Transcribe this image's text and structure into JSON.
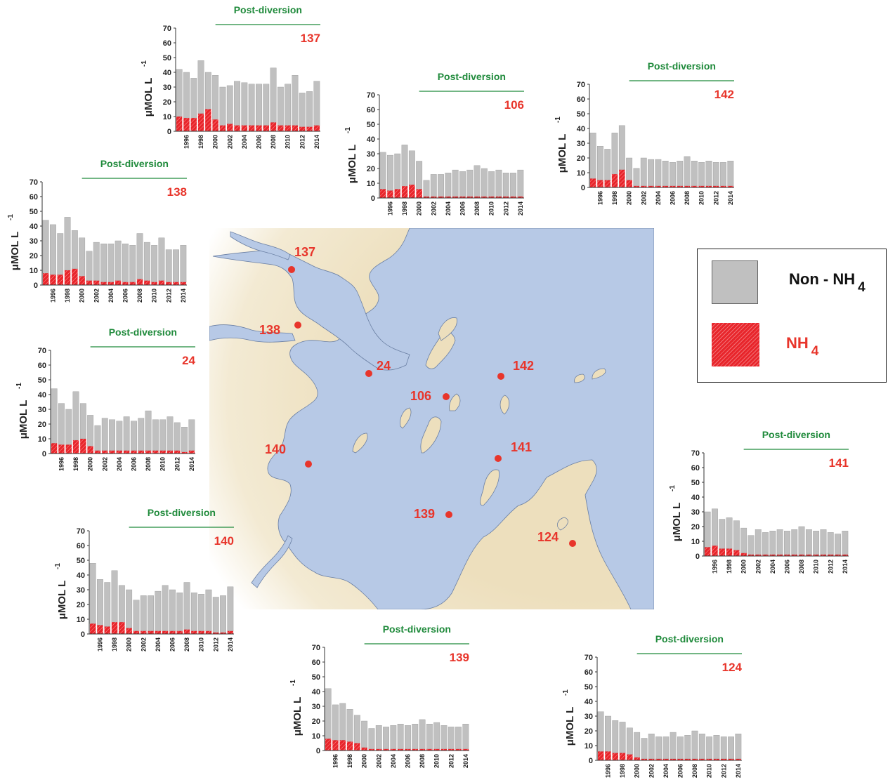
{
  "legend": {
    "gray_label": "Non - NH",
    "gray_sub": "4",
    "red_label": "NH",
    "red_sub": "4"
  },
  "colors": {
    "non_nh4": "#c0c0c0",
    "nh4": "#e8252b",
    "post_line": "#1f8a3b",
    "water": "#b7c9e6",
    "land": "#eddfbd"
  },
  "map": {
    "stations": [
      {
        "id": "137",
        "label": "137"
      },
      {
        "id": "138",
        "label": "138"
      },
      {
        "id": "24",
        "label": "24"
      },
      {
        "id": "106",
        "label": "106"
      },
      {
        "id": "142",
        "label": "142"
      },
      {
        "id": "140",
        "label": "140"
      },
      {
        "id": "141",
        "label": "141"
      },
      {
        "id": "139",
        "label": "139"
      },
      {
        "id": "124",
        "label": "124"
      }
    ]
  },
  "chart_data": [
    {
      "type": "bar",
      "station": "137",
      "post_label": "Post-diversion",
      "ylabel": "μMOL L",
      "ylabel_sup": "-1",
      "ylim": [
        0,
        70
      ],
      "yticks": [
        0,
        10,
        20,
        30,
        40,
        50,
        60,
        70
      ],
      "categories": [
        "1995",
        "1996",
        "1997",
        "1998",
        "1999",
        "2000",
        "2001",
        "2002",
        "2003",
        "2004",
        "2005",
        "2006",
        "2007",
        "2008",
        "2009",
        "2010",
        "2011",
        "2012",
        "2013",
        "2014"
      ],
      "xtick_labels": [
        "1996",
        "1998",
        "2000",
        "2002",
        "2004",
        "2006",
        "2008",
        "2010",
        "2012",
        "2014"
      ],
      "series": [
        {
          "name": "NH4",
          "values": [
            10,
            9,
            9,
            12,
            15,
            8,
            4,
            5,
            4,
            4,
            4,
            4,
            4,
            6,
            4,
            4,
            4,
            3,
            3,
            4
          ]
        },
        {
          "name": "Non-NH4",
          "values": [
            32,
            31,
            27,
            36,
            25,
            30,
            26,
            26,
            30,
            29,
            28,
            28,
            28,
            37,
            26,
            28,
            34,
            23,
            24,
            30
          ]
        }
      ]
    },
    {
      "type": "bar",
      "station": "106",
      "post_label": "Post-diversion",
      "ylabel": "μMOL L",
      "ylabel_sup": "-1",
      "ylim": [
        0,
        70
      ],
      "yticks": [
        0,
        10,
        20,
        30,
        40,
        50,
        60,
        70
      ],
      "categories": [
        "1995",
        "1996",
        "1997",
        "1998",
        "1999",
        "2000",
        "2001",
        "2002",
        "2003",
        "2004",
        "2005",
        "2006",
        "2007",
        "2008",
        "2009",
        "2010",
        "2011",
        "2012",
        "2013",
        "2014"
      ],
      "xtick_labels": [
        "1996",
        "1998",
        "2000",
        "2002",
        "2004",
        "2006",
        "2008",
        "2010",
        "2012",
        "2014"
      ],
      "series": [
        {
          "name": "NH4",
          "values": [
            6,
            5,
            6,
            8,
            9,
            6,
            1,
            1,
            1,
            1,
            1,
            1,
            1,
            1,
            1,
            1,
            1,
            1,
            1,
            1
          ]
        },
        {
          "name": "Non-NH4",
          "values": [
            25,
            24,
            24,
            28,
            23,
            19,
            11,
            15,
            15,
            16,
            18,
            17,
            18,
            21,
            19,
            17,
            18,
            16,
            16,
            18
          ]
        }
      ]
    },
    {
      "type": "bar",
      "station": "142",
      "post_label": "Post-diversion",
      "ylabel": "μMOL L",
      "ylabel_sup": "-1",
      "ylim": [
        0,
        70
      ],
      "yticks": [
        0,
        10,
        20,
        30,
        40,
        50,
        60,
        70
      ],
      "categories": [
        "1995",
        "1996",
        "1997",
        "1998",
        "1999",
        "2000",
        "2001",
        "2002",
        "2003",
        "2004",
        "2005",
        "2006",
        "2007",
        "2008",
        "2009",
        "2010",
        "2011",
        "2012",
        "2013",
        "2014"
      ],
      "xtick_labels": [
        "1996",
        "1998",
        "2000",
        "2002",
        "2004",
        "2006",
        "2008",
        "2010",
        "2012",
        "2014"
      ],
      "series": [
        {
          "name": "NH4",
          "values": [
            6,
            5,
            5,
            9,
            12,
            5,
            1,
            1,
            1,
            1,
            1,
            1,
            1,
            1,
            1,
            1,
            1,
            1,
            1,
            1
          ]
        },
        {
          "name": "Non-NH4",
          "values": [
            31,
            23,
            21,
            28,
            30,
            15,
            12,
            19,
            18,
            18,
            17,
            16,
            17,
            20,
            17,
            16,
            17,
            16,
            16,
            17
          ]
        }
      ]
    },
    {
      "type": "bar",
      "station": "138",
      "post_label": "Post-diversion",
      "ylabel": "μMOL L",
      "ylabel_sup": "-1",
      "ylim": [
        0,
        70
      ],
      "yticks": [
        0,
        10,
        20,
        30,
        40,
        50,
        60,
        70
      ],
      "categories": [
        "1995",
        "1996",
        "1997",
        "1998",
        "1999",
        "2000",
        "2001",
        "2002",
        "2003",
        "2004",
        "2005",
        "2006",
        "2007",
        "2008",
        "2009",
        "2010",
        "2011",
        "2012",
        "2013",
        "2014"
      ],
      "xtick_labels": [
        "1996",
        "1998",
        "2000",
        "2002",
        "2004",
        "2006",
        "2008",
        "2010",
        "2012",
        "2014"
      ],
      "series": [
        {
          "name": "NH4",
          "values": [
            8,
            7,
            7,
            10,
            11,
            6,
            3,
            3,
            2,
            2,
            3,
            2,
            2,
            4,
            3,
            2,
            3,
            2,
            2,
            2
          ]
        },
        {
          "name": "Non-NH4",
          "values": [
            36,
            34,
            28,
            36,
            26,
            26,
            20,
            26,
            26,
            26,
            27,
            26,
            25,
            31,
            26,
            25,
            29,
            22,
            22,
            25
          ]
        }
      ]
    },
    {
      "type": "bar",
      "station": "24",
      "post_label": "Post-diversion",
      "ylabel": "μMOL L",
      "ylabel_sup": "-1",
      "ylim": [
        0,
        70
      ],
      "yticks": [
        0,
        10,
        20,
        30,
        40,
        50,
        60,
        70
      ],
      "categories": [
        "1995",
        "1996",
        "1997",
        "1998",
        "1999",
        "2000",
        "2001",
        "2002",
        "2003",
        "2004",
        "2005",
        "2006",
        "2007",
        "2008",
        "2009",
        "2010",
        "2011",
        "2012",
        "2013",
        "2014"
      ],
      "xtick_labels": [
        "1996",
        "1998",
        "2000",
        "2002",
        "2004",
        "2006",
        "2008",
        "2010",
        "2012",
        "2014"
      ],
      "series": [
        {
          "name": "NH4",
          "values": [
            7,
            6,
            6,
            9,
            10,
            5,
            2,
            2,
            2,
            2,
            2,
            2,
            2,
            2,
            2,
            2,
            2,
            2,
            1,
            2
          ]
        },
        {
          "name": "Non-NH4",
          "values": [
            37,
            28,
            24,
            33,
            24,
            21,
            17,
            22,
            21,
            20,
            23,
            20,
            22,
            27,
            21,
            21,
            23,
            19,
            17,
            21
          ]
        }
      ]
    },
    {
      "type": "bar",
      "station": "140",
      "post_label": "Post-diversion",
      "ylabel": "μMOL L",
      "ylabel_sup": "-1",
      "ylim": [
        0,
        70
      ],
      "yticks": [
        0,
        10,
        20,
        30,
        40,
        50,
        60,
        70
      ],
      "categories": [
        "1995",
        "1996",
        "1997",
        "1998",
        "1999",
        "2000",
        "2001",
        "2002",
        "2003",
        "2004",
        "2005",
        "2006",
        "2007",
        "2008",
        "2009",
        "2010",
        "2011",
        "2012",
        "2013",
        "2014"
      ],
      "xtick_labels": [
        "1996",
        "1998",
        "2000",
        "2002",
        "2004",
        "2006",
        "2008",
        "2010",
        "2012",
        "2014"
      ],
      "series": [
        {
          "name": "NH4",
          "values": [
            7,
            6,
            5,
            8,
            8,
            4,
            2,
            2,
            2,
            2,
            2,
            2,
            2,
            3,
            2,
            2,
            2,
            1,
            1,
            2
          ]
        },
        {
          "name": "Non-NH4",
          "values": [
            41,
            31,
            30,
            35,
            25,
            26,
            21,
            24,
            24,
            27,
            31,
            28,
            26,
            32,
            26,
            25,
            28,
            24,
            25,
            30
          ]
        }
      ]
    },
    {
      "type": "bar",
      "station": "141",
      "post_label": "Post-diversion",
      "ylabel": "μMOL L",
      "ylabel_sup": "-1",
      "ylim": [
        0,
        70
      ],
      "yticks": [
        0,
        10,
        20,
        30,
        40,
        50,
        60,
        70
      ],
      "categories": [
        "1995",
        "1996",
        "1997",
        "1998",
        "1999",
        "2000",
        "2001",
        "2002",
        "2003",
        "2004",
        "2005",
        "2006",
        "2007",
        "2008",
        "2009",
        "2010",
        "2011",
        "2012",
        "2013",
        "2014"
      ],
      "xtick_labels": [
        "1996",
        "1998",
        "2000",
        "2002",
        "2004",
        "2006",
        "2008",
        "2010",
        "2012",
        "2014"
      ],
      "series": [
        {
          "name": "NH4",
          "values": [
            6,
            7,
            5,
            5,
            4,
            2,
            1,
            1,
            1,
            1,
            1,
            1,
            1,
            1,
            1,
            1,
            1,
            1,
            1,
            1
          ]
        },
        {
          "name": "Non-NH4",
          "values": [
            24,
            25,
            20,
            21,
            20,
            17,
            13,
            17,
            15,
            16,
            17,
            16,
            17,
            19,
            17,
            16,
            17,
            15,
            14,
            16
          ]
        }
      ]
    },
    {
      "type": "bar",
      "station": "139",
      "post_label": "Post-diversion",
      "ylabel": "μMOL L",
      "ylabel_sup": "-1",
      "ylim": [
        0,
        70
      ],
      "yticks": [
        0,
        10,
        20,
        30,
        40,
        50,
        60,
        70
      ],
      "categories": [
        "1995",
        "1996",
        "1997",
        "1998",
        "1999",
        "2000",
        "2001",
        "2002",
        "2003",
        "2004",
        "2005",
        "2006",
        "2007",
        "2008",
        "2009",
        "2010",
        "2011",
        "2012",
        "2013",
        "2014"
      ],
      "xtick_labels": [
        "1996",
        "1998",
        "2000",
        "2002",
        "2004",
        "2006",
        "2008",
        "2010",
        "2012",
        "2014"
      ],
      "series": [
        {
          "name": "NH4",
          "values": [
            8,
            7,
            7,
            6,
            5,
            2,
            1,
            1,
            1,
            1,
            1,
            1,
            1,
            1,
            1,
            1,
            1,
            1,
            1,
            1
          ]
        },
        {
          "name": "Non-NH4",
          "values": [
            34,
            24,
            25,
            22,
            19,
            18,
            14,
            16,
            15,
            16,
            17,
            16,
            17,
            20,
            17,
            18,
            16,
            15,
            15,
            17
          ]
        }
      ]
    },
    {
      "type": "bar",
      "station": "124",
      "post_label": "Post-diversion",
      "ylabel": "μMOL L",
      "ylabel_sup": "-1",
      "ylim": [
        0,
        70
      ],
      "yticks": [
        0,
        10,
        20,
        30,
        40,
        50,
        60,
        70
      ],
      "categories": [
        "1995",
        "1996",
        "1997",
        "1998",
        "1999",
        "2000",
        "2001",
        "2002",
        "2003",
        "2004",
        "2005",
        "2006",
        "2007",
        "2008",
        "2009",
        "2010",
        "2011",
        "2012",
        "2013",
        "2014"
      ],
      "xtick_labels": [
        "1996",
        "1998",
        "2000",
        "2002",
        "2004",
        "2006",
        "2008",
        "2010",
        "2012",
        "2014"
      ],
      "series": [
        {
          "name": "NH4",
          "values": [
            6,
            6,
            5,
            5,
            4,
            2,
            1,
            1,
            1,
            1,
            1,
            1,
            1,
            1,
            1,
            1,
            1,
            1,
            1,
            1
          ]
        },
        {
          "name": "Non-NH4",
          "values": [
            27,
            24,
            22,
            21,
            18,
            17,
            14,
            17,
            15,
            15,
            18,
            15,
            16,
            19,
            17,
            15,
            16,
            15,
            15,
            17
          ]
        }
      ]
    }
  ]
}
